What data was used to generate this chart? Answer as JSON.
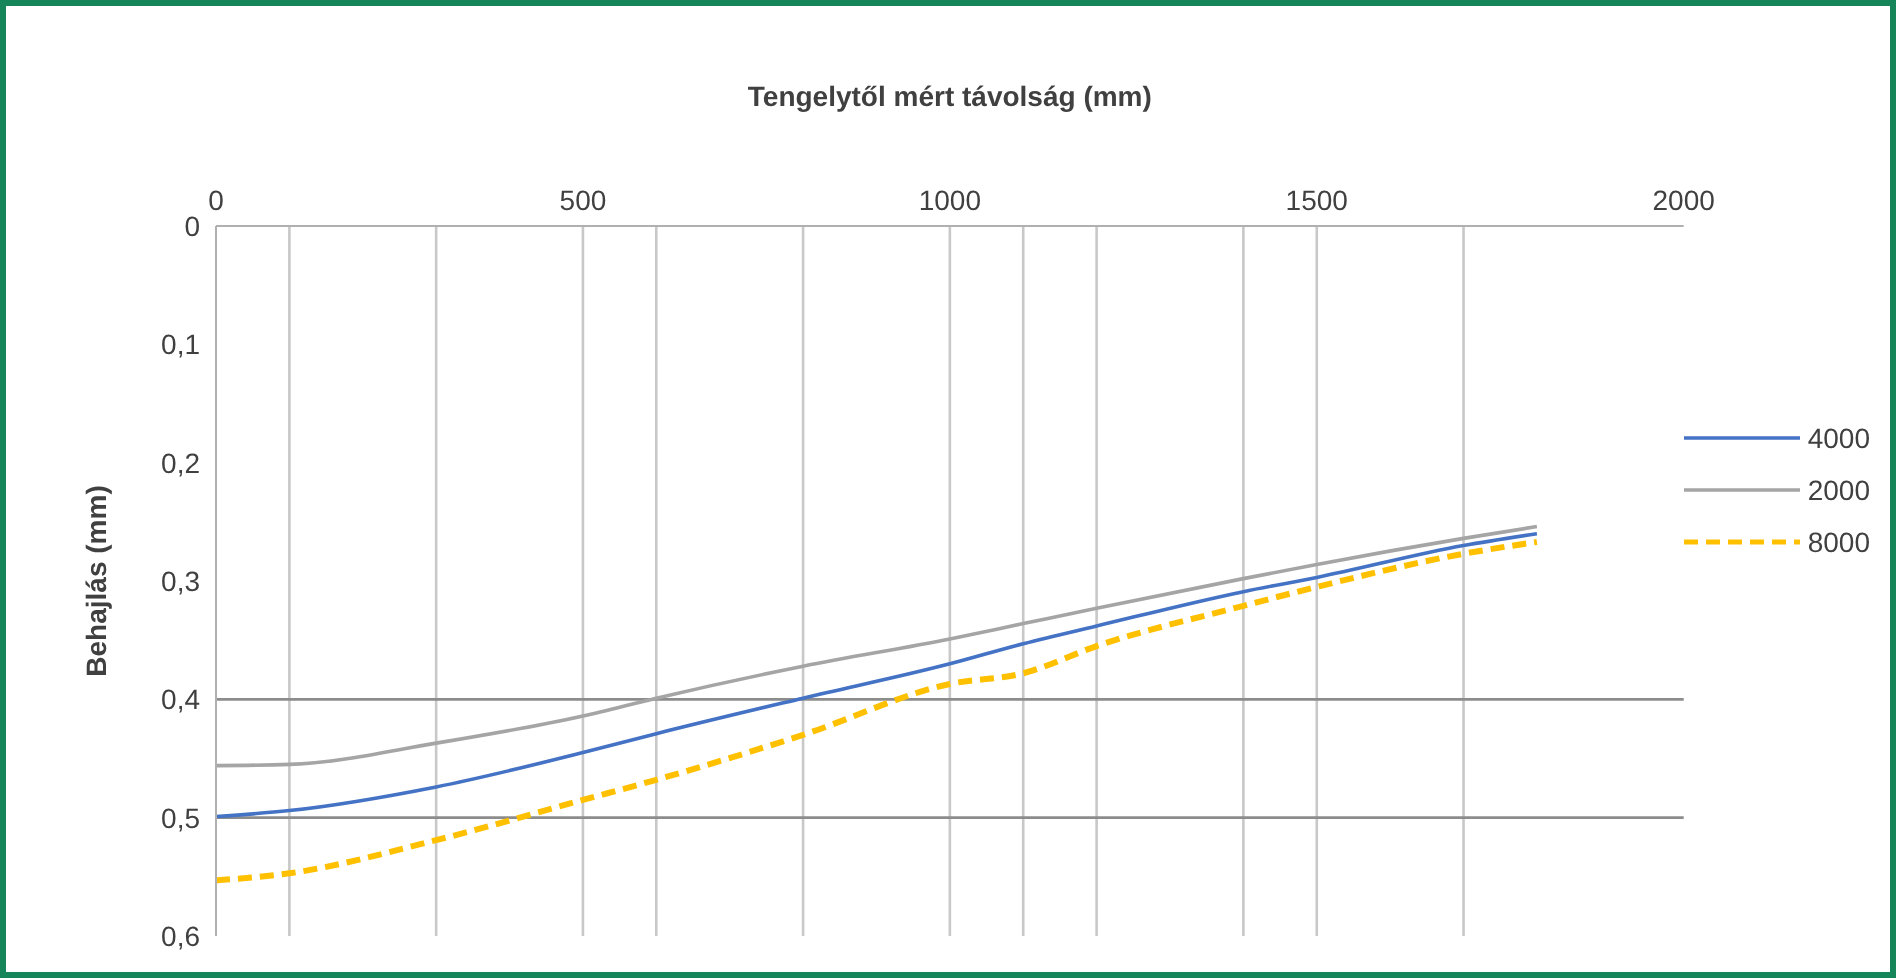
{
  "chart_data": {
    "type": "line",
    "xlabel": "Tengelytől mért távolság (mm)",
    "ylabel": "Behajlás (mm)",
    "x": [
      0,
      100,
      300,
      500,
      600,
      800,
      1000,
      1100,
      1200,
      1400,
      1500,
      1700,
      1800
    ],
    "series": [
      {
        "name": "4000",
        "color": "#4472c4",
        "line_style": "solid",
        "values": [
          0.499,
          0.494,
          0.474,
          0.445,
          0.429,
          0.399,
          0.37,
          0.353,
          0.338,
          0.309,
          0.297,
          0.27,
          0.26
        ]
      },
      {
        "name": "2000",
        "color": "#a5a5a5",
        "line_style": "solid",
        "values": [
          0.456,
          0.455,
          0.437,
          0.414,
          0.399,
          0.372,
          0.349,
          0.336,
          0.323,
          0.298,
          0.286,
          0.264,
          0.254
        ]
      },
      {
        "name": "8000",
        "color": "#ffc000",
        "line_style": "dashed",
        "values": [
          0.553,
          0.547,
          0.519,
          0.485,
          0.468,
          0.43,
          0.387,
          0.378,
          0.355,
          0.321,
          0.305,
          0.277,
          0.267
        ]
      }
    ],
    "xlim": [
      0,
      2000
    ],
    "xticks": [
      0,
      500,
      1000,
      1500,
      2000
    ],
    "ylim": [
      0.6,
      0
    ],
    "yticks": [
      0,
      {
        "value": 0.1,
        "label": "0,1"
      },
      {
        "value": 0.2,
        "label": "0,2"
      },
      {
        "value": 0.3,
        "label": "0,3"
      },
      {
        "value": 0.4,
        "label": "0,4"
      },
      {
        "value": 0.5,
        "label": "0,5"
      },
      {
        "value": 0.6,
        "label": "0,6"
      }
    ],
    "ref_lines": [
      {
        "axis": "x",
        "value": 100,
        "color": "#c8c8c8"
      },
      {
        "axis": "x",
        "value": 300,
        "color": "#c8c8c8"
      },
      {
        "axis": "x",
        "value": 500,
        "color": "#c8c8c8"
      },
      {
        "axis": "x",
        "value": 600,
        "color": "#c8c8c8"
      },
      {
        "axis": "x",
        "value": 800,
        "color": "#c8c8c8"
      },
      {
        "axis": "x",
        "value": 1000,
        "color": "#c8c8c8"
      },
      {
        "axis": "x",
        "value": 1100,
        "color": "#c8c8c8"
      },
      {
        "axis": "x",
        "value": 1200,
        "color": "#c8c8c8"
      },
      {
        "axis": "x",
        "value": 1400,
        "color": "#c8c8c8"
      },
      {
        "axis": "x",
        "value": 1500,
        "color": "#c8c8c8"
      },
      {
        "axis": "x",
        "value": 1700,
        "color": "#c8c8c8"
      },
      {
        "axis": "y",
        "value": 0.4,
        "color": "#8c8c8c"
      },
      {
        "axis": "y",
        "value": 0.5,
        "color": "#8c8c8c"
      }
    ],
    "legend": "right",
    "marker": "none"
  }
}
